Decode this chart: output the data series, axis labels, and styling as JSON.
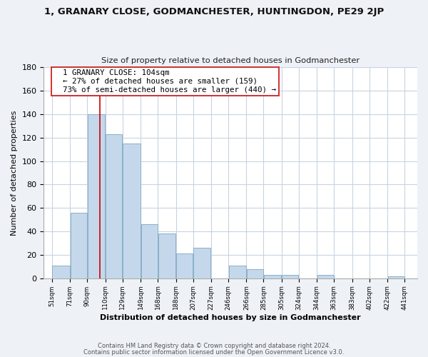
{
  "title": "1, GRANARY CLOSE, GODMANCHESTER, HUNTINGDON, PE29 2JP",
  "subtitle": "Size of property relative to detached houses in Godmanchester",
  "xlabel": "Distribution of detached houses by size in Godmanchester",
  "ylabel": "Number of detached properties",
  "bar_left_edges": [
    51,
    71,
    90,
    110,
    129,
    149,
    168,
    188,
    207,
    227,
    246,
    266,
    285,
    305,
    324,
    344,
    363,
    383,
    402,
    422
  ],
  "bar_widths": [
    20,
    19,
    20,
    19,
    20,
    19,
    20,
    19,
    20,
    19,
    20,
    19,
    20,
    19,
    19,
    19,
    20,
    19,
    20,
    19
  ],
  "bar_heights": [
    11,
    56,
    140,
    123,
    115,
    46,
    38,
    21,
    26,
    0,
    11,
    8,
    3,
    3,
    0,
    3,
    0,
    0,
    0,
    2
  ],
  "bar_color": "#c5d8eb",
  "bar_edge_color": "#8aafc8",
  "tick_labels": [
    "51sqm",
    "71sqm",
    "90sqm",
    "110sqm",
    "129sqm",
    "149sqm",
    "168sqm",
    "188sqm",
    "207sqm",
    "227sqm",
    "246sqm",
    "266sqm",
    "285sqm",
    "305sqm",
    "324sqm",
    "344sqm",
    "363sqm",
    "383sqm",
    "402sqm",
    "422sqm",
    "441sqm"
  ],
  "ylim": [
    0,
    180
  ],
  "yticks": [
    0,
    20,
    40,
    60,
    80,
    100,
    120,
    140,
    160,
    180
  ],
  "vline_x": 104,
  "vline_color": "#cc0000",
  "annotation_title": "1 GRANARY CLOSE: 104sqm",
  "annotation_line1": "← 27% of detached houses are smaller (159)",
  "annotation_line2": "73% of semi-detached houses are larger (440) →",
  "footer_line1": "Contains HM Land Registry data © Crown copyright and database right 2024.",
  "footer_line2": "Contains public sector information licensed under the Open Government Licence v3.0.",
  "background_color": "#eef2f7",
  "plot_bg_color": "#ffffff",
  "grid_color": "#c8d4e0"
}
